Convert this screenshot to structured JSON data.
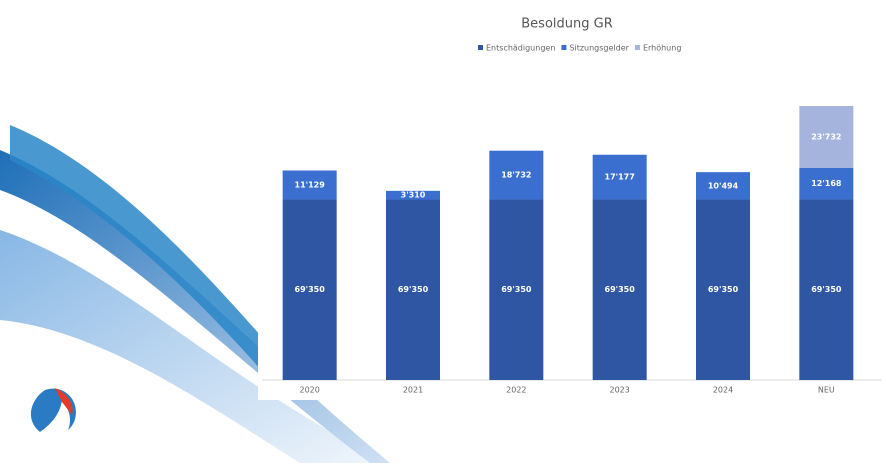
{
  "chart_data": {
    "type": "stacked_bar",
    "title": "Besoldung GR",
    "categories": [
      "2020",
      "2021",
      "2022",
      "2023",
      "2024",
      "NEU"
    ],
    "series": [
      {
        "name": "Entschädigungen",
        "color": "#2f56a3",
        "values": [
          69350,
          69350,
          69350,
          69350,
          69350,
          69350
        ],
        "value_labels": [
          "69'350",
          "69'350",
          "69'350",
          "69'350",
          "69'350",
          "69'350"
        ]
      },
      {
        "name": "Sitzungsgelder",
        "color": "#3a6fcf",
        "values": [
          11129,
          3310,
          18732,
          17177,
          10494,
          12168
        ],
        "value_labels": [
          "11'129",
          "3'310",
          "18'732",
          "17'177",
          "10'494",
          "12'168"
        ]
      },
      {
        "name": "Erhöhung",
        "color": "#a4b4dc",
        "values": [
          null,
          null,
          null,
          null,
          null,
          23732
        ],
        "value_labels": [
          null,
          null,
          null,
          null,
          null,
          "23'732"
        ]
      }
    ],
    "legend": "top"
  }
}
